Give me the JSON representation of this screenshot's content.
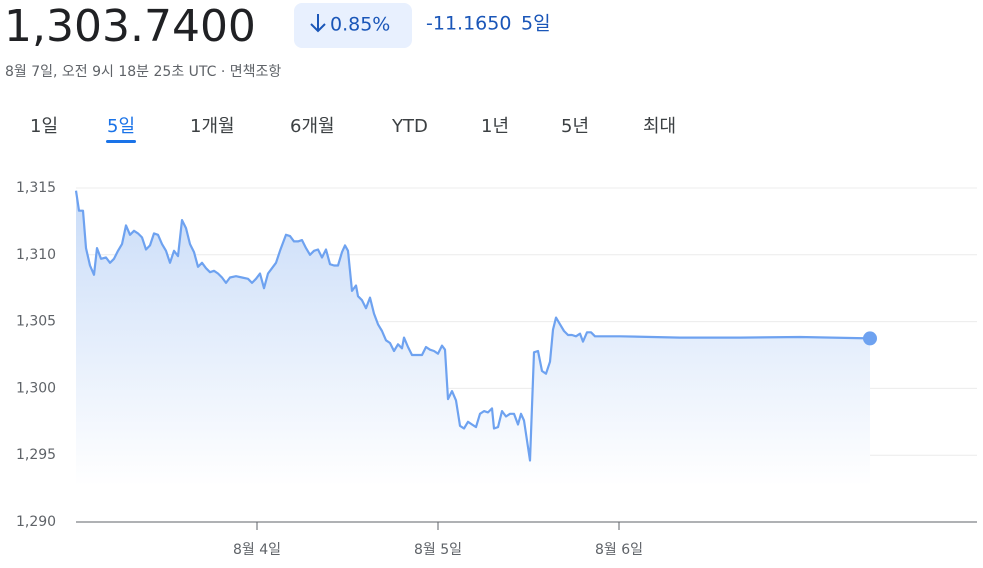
{
  "header": {
    "price": "1,303.7400",
    "change_pct": "0.85%",
    "change_abs": "-11.1650",
    "period": "5일",
    "timestamp": "8월 7일, 오전 9시 18분 25초 UTC",
    "separator": "·",
    "disclaimer": "면책조항"
  },
  "tabs": [
    "1일",
    "5일",
    "1개월",
    "6개월",
    "YTD",
    "1년",
    "5년",
    "최대"
  ],
  "active_tab": 1,
  "chart_data": {
    "type": "line",
    "color": "#6ea2f0",
    "grid": true,
    "x": [
      0,
      3,
      7,
      10,
      14,
      18,
      21,
      25,
      30,
      34,
      38,
      42,
      46,
      50,
      54,
      58,
      62,
      66,
      70,
      74,
      78,
      82,
      86,
      90,
      94,
      98,
      102,
      106,
      110,
      114,
      118,
      122,
      126,
      130,
      134,
      138,
      142,
      146,
      150,
      154,
      160,
      166,
      172,
      176,
      180,
      184,
      188,
      192,
      196,
      200,
      204,
      210,
      214,
      218,
      222,
      226,
      230,
      234,
      238,
      242,
      246,
      250,
      254,
      258,
      262,
      266,
      269,
      272,
      276,
      280,
      282,
      286,
      290,
      294,
      298,
      302,
      306,
      310,
      314,
      318,
      322,
      326,
      328,
      332,
      336,
      342,
      346,
      350,
      354,
      358,
      362,
      366,
      369,
      372,
      376,
      380,
      384,
      388,
      392,
      396,
      400,
      404,
      408,
      412,
      416,
      418,
      422,
      426,
      430,
      434,
      438,
      442,
      445,
      448,
      454,
      458,
      462,
      466,
      470,
      474,
      477,
      480,
      484,
      488,
      492,
      496,
      500,
      504,
      507,
      511,
      515,
      519,
      544,
      604,
      664,
      724,
      794
    ],
    "values": [
      1314.8,
      1313.3,
      1313.3,
      1310.5,
      1309.2,
      1308.5,
      1310.5,
      1309.7,
      1309.8,
      1309.4,
      1309.7,
      1310.3,
      1310.8,
      1312.2,
      1311.5,
      1311.8,
      1311.6,
      1311.3,
      1310.4,
      1310.7,
      1311.6,
      1311.5,
      1310.8,
      1310.3,
      1309.4,
      1310.3,
      1309.9,
      1312.6,
      1312.0,
      1310.8,
      1310.2,
      1309.1,
      1309.4,
      1309.0,
      1308.7,
      1308.8,
      1308.6,
      1308.3,
      1307.9,
      1308.3,
      1308.4,
      1308.3,
      1308.2,
      1307.9,
      1308.2,
      1308.6,
      1307.5,
      1308.6,
      1309.0,
      1309.4,
      1310.3,
      1311.5,
      1311.4,
      1311.0,
      1311.0,
      1311.1,
      1310.5,
      1310.0,
      1310.3,
      1310.4,
      1309.8,
      1310.4,
      1309.3,
      1309.2,
      1309.2,
      1310.2,
      1310.7,
      1310.3,
      1307.3,
      1307.7,
      1306.9,
      1306.6,
      1306.0,
      1306.8,
      1305.6,
      1304.8,
      1304.3,
      1303.6,
      1303.4,
      1302.8,
      1303.3,
      1303.0,
      1303.8,
      1303.1,
      1302.5,
      1302.5,
      1302.5,
      1303.1,
      1302.9,
      1302.8,
      1302.6,
      1303.2,
      1302.9,
      1299.2,
      1299.8,
      1299.1,
      1297.2,
      1297.0,
      1297.5,
      1297.3,
      1297.1,
      1298.1,
      1298.3,
      1298.2,
      1298.5,
      1297.0,
      1297.1,
      1298.3,
      1297.9,
      1298.1,
      1298.1,
      1297.3,
      1298.1,
      1297.6,
      1294.6,
      1302.7,
      1302.8,
      1301.3,
      1301.1,
      1302.0,
      1304.4,
      1305.3,
      1304.8,
      1304.3,
      1304.0,
      1304.0,
      1303.9,
      1304.1,
      1303.5,
      1304.2,
      1304.2,
      1303.9,
      1303.9,
      1303.8,
      1303.8,
      1303.85,
      1303.74
    ],
    "xlim": [
      0,
      901
    ],
    "xticks": [
      {
        "value": 181,
        "label": "8월 4일"
      },
      {
        "value": 362,
        "label": "8월 5일"
      },
      {
        "value": 543,
        "label": "8월 6일"
      }
    ],
    "ylim": [
      1290,
      1315
    ],
    "yticks": [
      {
        "value": 1290,
        "label": "1,290"
      },
      {
        "value": 1295,
        "label": "1,295"
      },
      {
        "value": 1300,
        "label": "1,300"
      },
      {
        "value": 1305,
        "label": "1,305"
      },
      {
        "value": 1310,
        "label": "1,310"
      },
      {
        "value": 1315,
        "label": "1,315"
      }
    ]
  }
}
